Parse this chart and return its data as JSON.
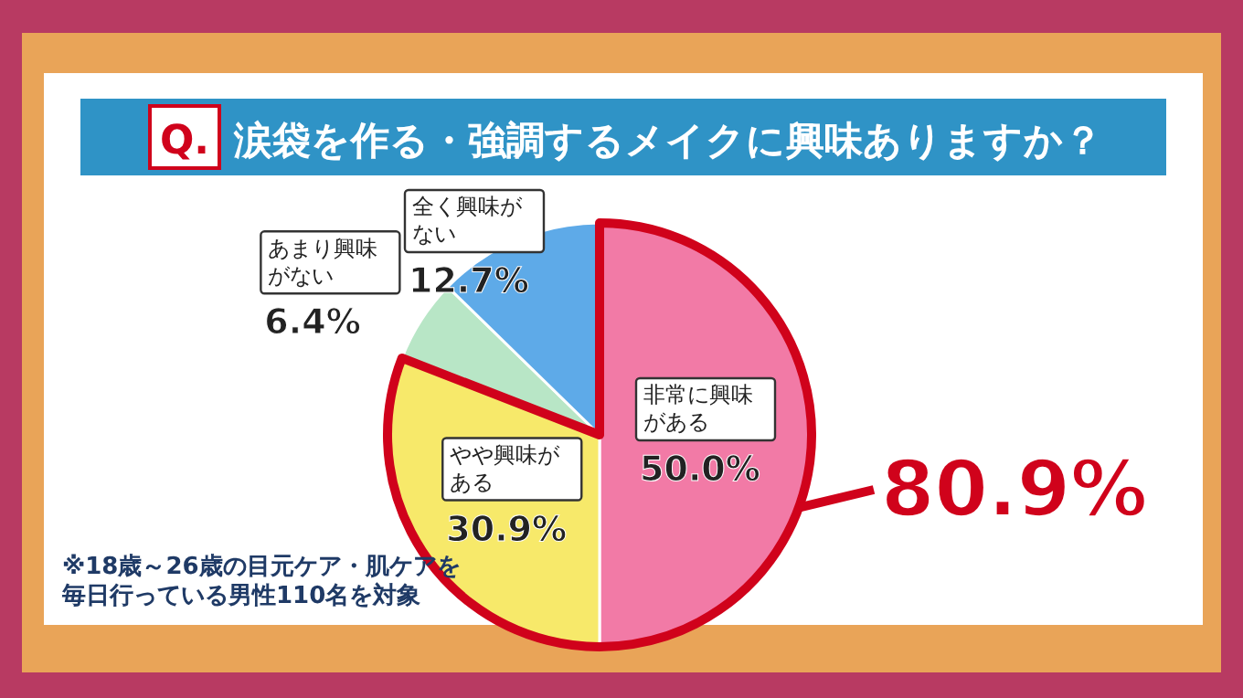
{
  "chart_data": {
    "type": "pie",
    "title": "涙袋を作る・強調するメイクに興味ありますか？",
    "categories": [
      "非常に興味がある",
      "やや興味がある",
      "あまり興味がない",
      "全く興味がない"
    ],
    "values": [
      50.0,
      30.9,
      6.4,
      12.7
    ],
    "value_labels": [
      "50.0%",
      "30.9%",
      "6.4%",
      "12.7%"
    ],
    "colors": [
      "#f27aa6",
      "#f7e96a",
      "#b8e6c6",
      "#5eaae8"
    ],
    "annotations": [
      "Q.",
      "80.9%",
      "※18歳～26歳の目元ケア・肌ケアを毎日行っている男性110名を対象"
    ]
  }
}
